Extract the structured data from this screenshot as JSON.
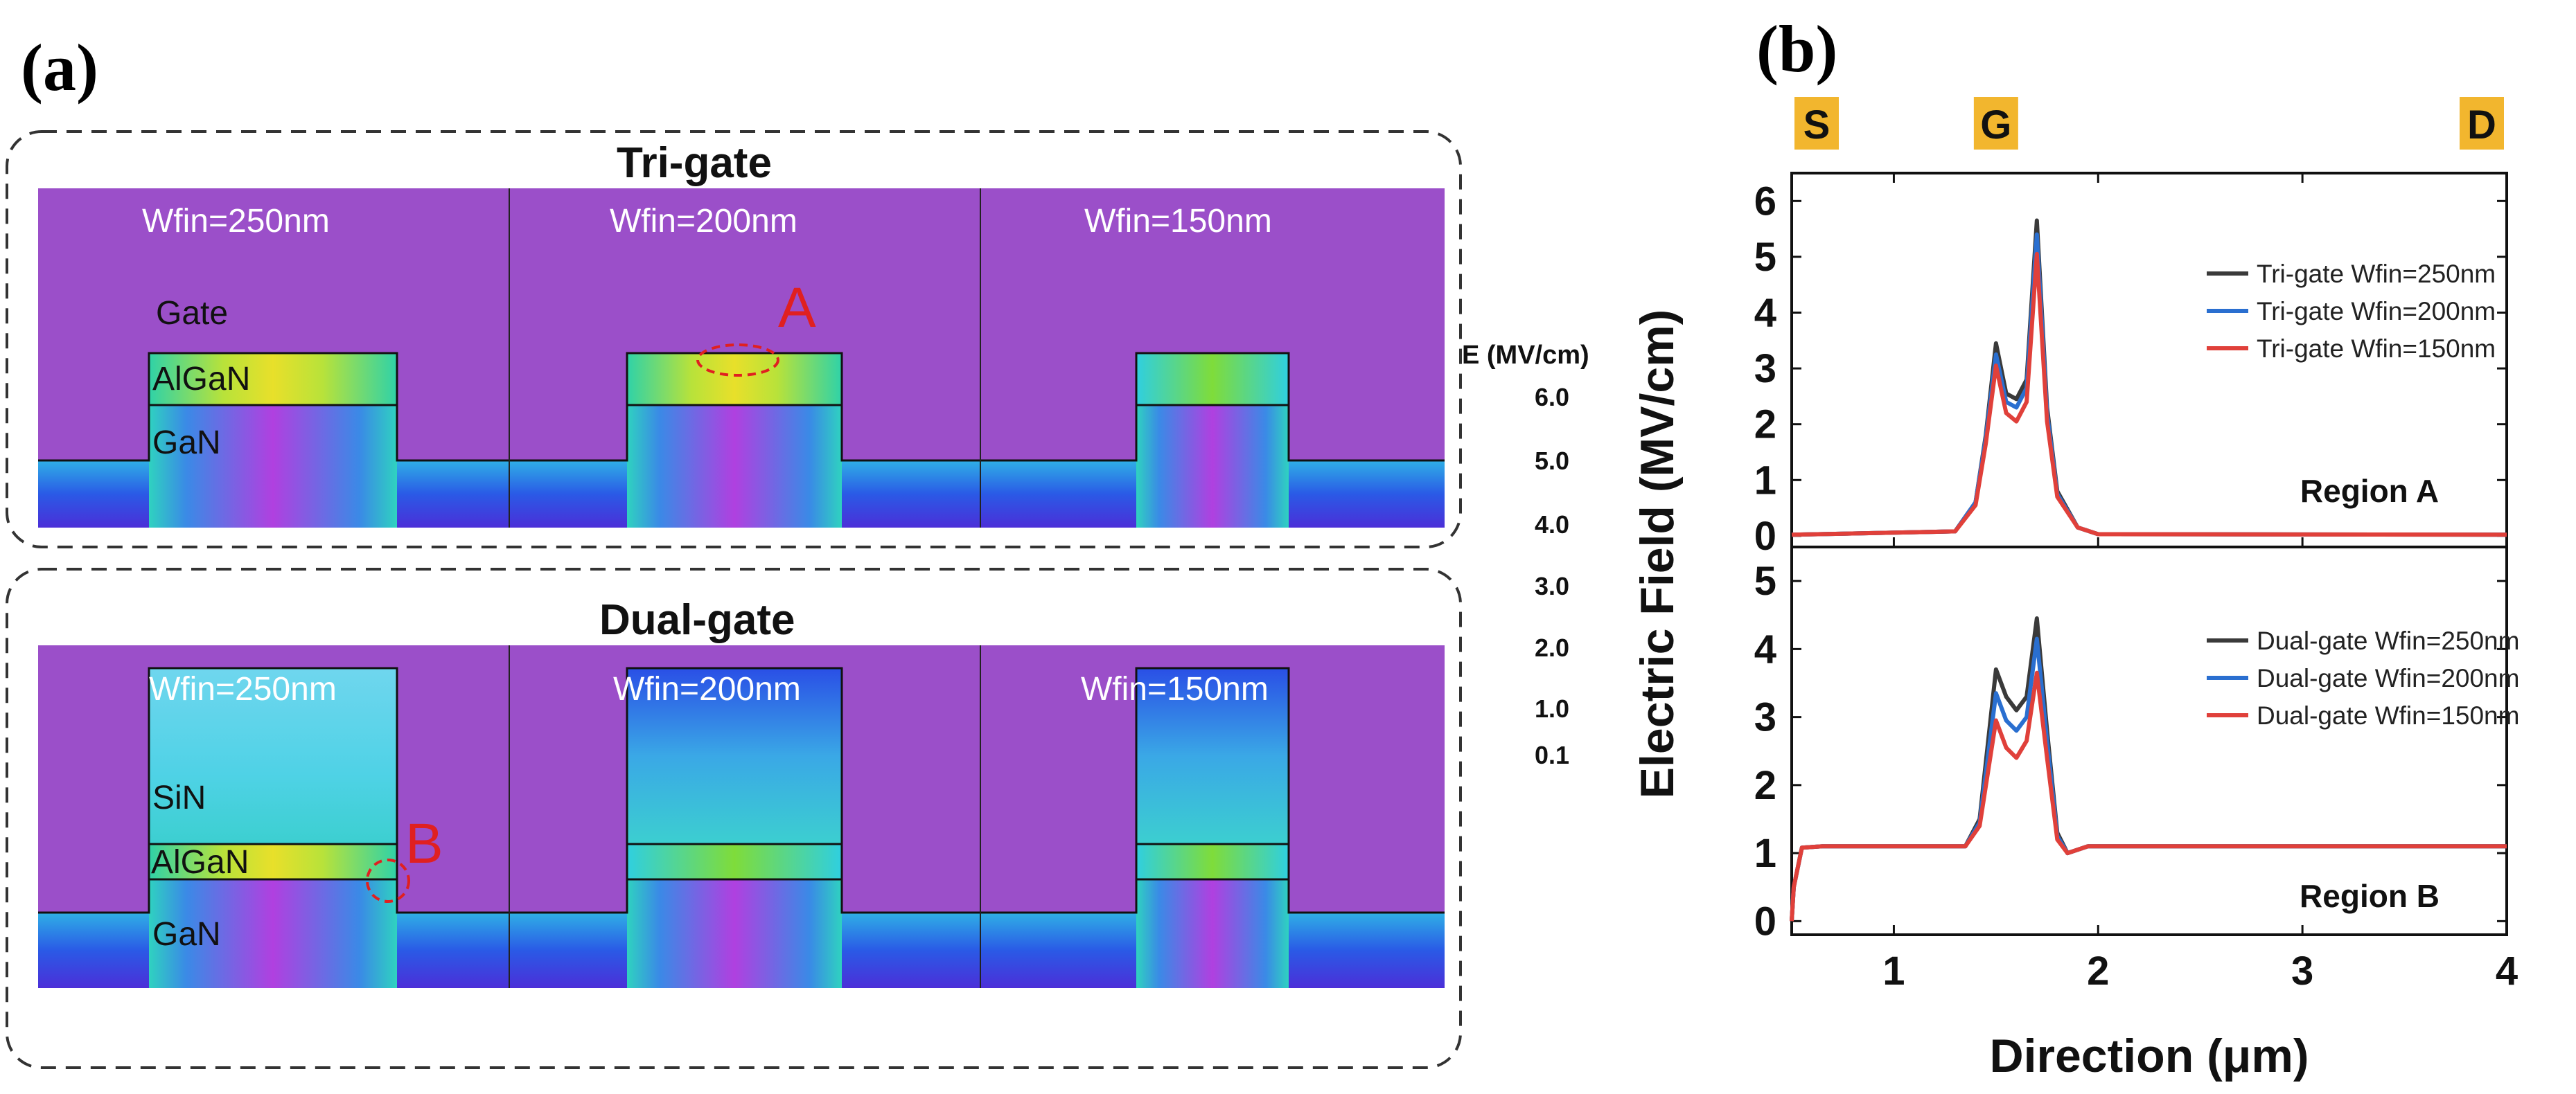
{
  "panel_a": {
    "label": "(a)",
    "trigate": {
      "title": "Tri-gate",
      "cells": [
        "Wfin=250nm",
        "Wfin=200nm",
        "Wfin=150nm"
      ],
      "layer_labels": {
        "gate": "Gate",
        "algan": "AlGaN",
        "gan": "GaN"
      },
      "annotation": "A"
    },
    "dualgate": {
      "title": "Dual-gate",
      "cells": [
        "Wfin=250nm",
        "Wfin=200nm",
        "Wfin=150nm"
      ],
      "layer_labels": {
        "sin": "SiN",
        "algan": "AlGaN",
        "gan": "GaN"
      },
      "annotation": "B"
    },
    "colorbar": {
      "title": "E (MV/cm)",
      "ticks": [
        "6.0",
        "5.0",
        "4.0",
        "3.0",
        "2.0",
        "1.0",
        "0.1"
      ],
      "colors": [
        "#e65a1e",
        "#f5a62a",
        "#e8e02a",
        "#7fdc3a",
        "#2fd28a",
        "#2bb9e6",
        "#2f6fe6",
        "#4b2fe0",
        "#7a3ce6",
        "#c070f0"
      ]
    },
    "cell_colors": {
      "background": "#9b4fc9",
      "algan_hot": "#d8e23a",
      "field_mid": "#3ccfe0",
      "field_low": "#2a4fe6"
    }
  },
  "panel_b": {
    "label": "(b)",
    "top_markers": [
      "S",
      "G",
      "D"
    ],
    "marker_color": "#f2b62e"
  },
  "chart_data": [
    {
      "type": "line",
      "title": "",
      "region_label": "Region A",
      "ylabel": "Electric Field (MV/cm)",
      "xlabel": "Direction (μm)",
      "xlim": [
        0.5,
        4.0
      ],
      "ylim": [
        -0.2,
        6.5
      ],
      "yticks": [
        "0",
        "1",
        "2",
        "3",
        "4",
        "5",
        "6"
      ],
      "xticks": [
        "1",
        "2",
        "3",
        "4"
      ],
      "legend_position": "top-right",
      "series": [
        {
          "name": "Tri-gate Wfin=250nm",
          "color": "#3a3a3a",
          "x": [
            0.5,
            1.3,
            1.4,
            1.45,
            1.5,
            1.55,
            1.6,
            1.65,
            1.7,
            1.75,
            1.8,
            1.9,
            2.0,
            4.0
          ],
          "y": [
            0.02,
            0.08,
            0.6,
            1.8,
            3.45,
            2.55,
            2.45,
            2.8,
            5.65,
            2.3,
            0.8,
            0.15,
            0.03,
            0.02
          ]
        },
        {
          "name": "Tri-gate Wfin=200nm",
          "color": "#2a6fd0",
          "x": [
            0.5,
            1.3,
            1.4,
            1.45,
            1.5,
            1.55,
            1.6,
            1.65,
            1.7,
            1.75,
            1.8,
            1.9,
            2.0,
            4.0
          ],
          "y": [
            0.02,
            0.08,
            0.6,
            1.75,
            3.25,
            2.4,
            2.3,
            2.65,
            5.4,
            2.2,
            0.75,
            0.15,
            0.03,
            0.02
          ]
        },
        {
          "name": "Tri-gate Wfin=150nm",
          "color": "#e0403a",
          "x": [
            0.5,
            1.3,
            1.4,
            1.45,
            1.5,
            1.55,
            1.6,
            1.65,
            1.7,
            1.75,
            1.8,
            1.9,
            2.0,
            4.0
          ],
          "y": [
            0.02,
            0.08,
            0.55,
            1.65,
            3.05,
            2.2,
            2.05,
            2.4,
            5.05,
            2.05,
            0.7,
            0.15,
            0.03,
            0.02
          ]
        }
      ]
    },
    {
      "type": "line",
      "title": "",
      "region_label": "Region B",
      "ylabel": "Electric Field (MV/cm)",
      "xlabel": "Direction (μm)",
      "xlim": [
        0.5,
        4.0
      ],
      "ylim": [
        -0.2,
        5.5
      ],
      "yticks": [
        "0",
        "1",
        "2",
        "3",
        "4",
        "5"
      ],
      "xticks": [
        "1",
        "2",
        "3",
        "4"
      ],
      "legend_position": "top-right",
      "series": [
        {
          "name": "Dual-gate Wfin=250nm",
          "color": "#3a3a3a",
          "x": [
            0.5,
            0.51,
            0.55,
            0.65,
            1.35,
            1.42,
            1.5,
            1.55,
            1.6,
            1.65,
            1.7,
            1.75,
            1.8,
            1.85,
            1.95,
            4.0
          ],
          "y": [
            0.0,
            0.5,
            1.08,
            1.1,
            1.1,
            1.5,
            3.7,
            3.3,
            3.1,
            3.3,
            4.45,
            2.8,
            1.3,
            1.0,
            1.1,
            1.1
          ]
        },
        {
          "name": "Dual-gate Wfin=200nm",
          "color": "#2a6fd0",
          "x": [
            0.5,
            0.51,
            0.55,
            0.65,
            1.35,
            1.42,
            1.5,
            1.55,
            1.6,
            1.65,
            1.7,
            1.75,
            1.8,
            1.85,
            1.95,
            4.0
          ],
          "y": [
            0.0,
            0.5,
            1.08,
            1.1,
            1.1,
            1.45,
            3.35,
            2.95,
            2.8,
            3.0,
            4.15,
            2.65,
            1.25,
            1.0,
            1.1,
            1.1
          ]
        },
        {
          "name": "Dual-gate Wfin=150nm",
          "color": "#e0403a",
          "x": [
            0.5,
            0.51,
            0.55,
            0.65,
            1.35,
            1.42,
            1.5,
            1.55,
            1.6,
            1.65,
            1.7,
            1.75,
            1.8,
            1.85,
            1.95,
            4.0
          ],
          "y": [
            0.0,
            0.5,
            1.08,
            1.1,
            1.1,
            1.4,
            2.95,
            2.55,
            2.4,
            2.65,
            3.65,
            2.4,
            1.2,
            1.0,
            1.1,
            1.1
          ]
        }
      ]
    }
  ]
}
